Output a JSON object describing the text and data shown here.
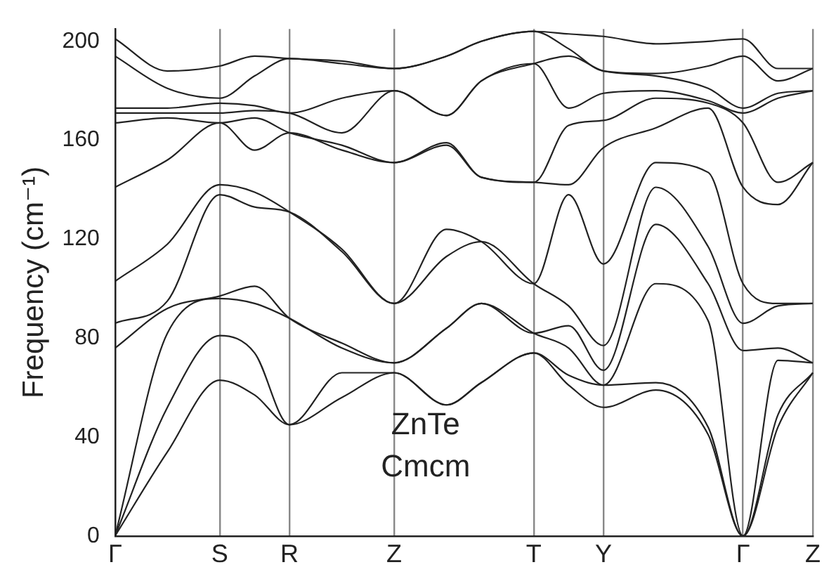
{
  "chart_data": {
    "type": "line",
    "ylabel": "Frequency (cm⁻¹)",
    "annotations": [
      "ZnTe",
      "Cmcm"
    ],
    "categories": [
      "Γ",
      null,
      null,
      null,
      null,
      null,
      "S",
      null,
      null,
      null,
      "R",
      null,
      null,
      null,
      null,
      null,
      "Z",
      null,
      null,
      null,
      null,
      null,
      null,
      null,
      "T",
      null,
      null,
      null,
      "Y",
      null,
      null,
      null,
      null,
      null,
      null,
      null,
      "Γ",
      null,
      null,
      null,
      "Z"
    ],
    "ylim": [
      0,
      205
    ],
    "yticks": [
      0,
      40,
      80,
      120,
      160,
      200
    ],
    "grid": "x",
    "legend": false,
    "marker": "none",
    "line_style": "solid",
    "series": [
      {
        "color": "#222222",
        "values": [
          0,
          null,
          null,
          34,
          null,
          null,
          63,
          null,
          57,
          null,
          45,
          null,
          null,
          56,
          null,
          null,
          66,
          null,
          null,
          53,
          null,
          62,
          null,
          null,
          74,
          null,
          61,
          null,
          52,
          null,
          null,
          59,
          null,
          null,
          41,
          null,
          0,
          null,
          44,
          null,
          66
        ]
      },
      {
        "color": "#222222",
        "values": [
          0,
          null,
          null,
          52,
          null,
          null,
          81,
          null,
          74,
          null,
          45,
          null,
          null,
          66,
          null,
          null,
          66,
          null,
          null,
          53,
          null,
          62,
          null,
          null,
          74,
          null,
          65,
          null,
          61,
          null,
          null,
          62,
          null,
          null,
          44,
          null,
          0,
          null,
          49,
          null,
          66
        ]
      },
      {
        "color": "#222222",
        "values": [
          0,
          null,
          null,
          82,
          null,
          null,
          96,
          null,
          94,
          null,
          88,
          null,
          null,
          76,
          null,
          null,
          70,
          null,
          null,
          84,
          null,
          94,
          null,
          null,
          82,
          null,
          76,
          null,
          61,
          null,
          null,
          102,
          null,
          null,
          87,
          null,
          0,
          null,
          71,
          null,
          70
        ]
      },
      {
        "color": "#222222",
        "values": [
          76,
          null,
          null,
          92,
          null,
          null,
          97,
          null,
          101,
          null,
          88,
          null,
          null,
          78,
          null,
          null,
          70,
          null,
          null,
          84,
          null,
          94,
          null,
          null,
          82,
          null,
          85,
          null,
          67,
          null,
          null,
          126,
          null,
          null,
          102,
          null,
          75,
          null,
          76,
          null,
          70
        ]
      },
      {
        "color": "#222222",
        "values": [
          86,
          null,
          null,
          95,
          null,
          null,
          138,
          null,
          133,
          null,
          131,
          null,
          null,
          115,
          null,
          null,
          94,
          null,
          null,
          113,
          null,
          119,
          null,
          null,
          102,
          null,
          93,
          null,
          77,
          null,
          null,
          141,
          null,
          null,
          117,
          null,
          86,
          null,
          93,
          null,
          94
        ]
      },
      {
        "color": "#222222",
        "values": [
          103,
          null,
          null,
          118,
          null,
          null,
          142,
          null,
          139,
          null,
          131,
          null,
          null,
          116,
          null,
          null,
          94,
          null,
          null,
          124,
          null,
          119,
          null,
          null,
          102,
          null,
          138,
          null,
          110,
          null,
          null,
          151,
          null,
          null,
          147,
          null,
          102,
          null,
          94,
          null,
          94
        ]
      },
      {
        "color": "#222222",
        "values": [
          141,
          null,
          null,
          152,
          null,
          null,
          167,
          null,
          156,
          null,
          163,
          null,
          null,
          156,
          null,
          null,
          151,
          null,
          null,
          158,
          null,
          145,
          null,
          null,
          143,
          null,
          142,
          null,
          157,
          null,
          null,
          165,
          null,
          null,
          173,
          null,
          141,
          null,
          134,
          null,
          151
        ]
      },
      {
        "color": "#222222",
        "values": [
          167,
          null,
          null,
          169,
          null,
          null,
          167,
          null,
          169,
          null,
          163,
          null,
          null,
          158,
          null,
          null,
          151,
          null,
          null,
          159,
          null,
          145,
          null,
          null,
          143,
          null,
          166,
          null,
          168,
          null,
          null,
          177,
          null,
          null,
          175,
          null,
          167,
          null,
          143,
          null,
          151
        ]
      },
      {
        "color": "#222222",
        "values": [
          171,
          null,
          null,
          171,
          null,
          null,
          171,
          null,
          172,
          null,
          171,
          null,
          null,
          163,
          null,
          null,
          180,
          null,
          null,
          170,
          null,
          184,
          null,
          null,
          191,
          null,
          173,
          null,
          179,
          null,
          null,
          180,
          null,
          null,
          176,
          null,
          171,
          null,
          177,
          null,
          180
        ]
      },
      {
        "color": "#222222",
        "values": [
          173,
          null,
          null,
          173,
          null,
          null,
          175,
          null,
          174,
          null,
          171,
          null,
          null,
          177,
          null,
          null,
          180,
          null,
          null,
          170,
          null,
          184,
          null,
          null,
          191,
          null,
          194,
          null,
          188,
          null,
          null,
          186,
          null,
          null,
          181,
          null,
          173,
          null,
          179,
          null,
          180
        ]
      },
      {
        "color": "#222222",
        "values": [
          194,
          null,
          null,
          181,
          null,
          null,
          177,
          null,
          186,
          null,
          193,
          null,
          null,
          191,
          null,
          null,
          189,
          null,
          null,
          194,
          null,
          200,
          null,
          null,
          204,
          null,
          197,
          null,
          188,
          null,
          null,
          187,
          null,
          null,
          190,
          null,
          194,
          null,
          184,
          null,
          189
        ]
      },
      {
        "color": "#222222",
        "values": [
          201,
          null,
          null,
          188,
          null,
          null,
          190,
          null,
          194,
          null,
          193,
          null,
          null,
          192,
          null,
          null,
          189,
          null,
          null,
          194,
          null,
          200,
          null,
          null,
          204,
          null,
          203,
          null,
          202,
          null,
          null,
          199,
          null,
          null,
          200,
          null,
          201,
          null,
          189,
          null,
          189
        ]
      }
    ]
  }
}
